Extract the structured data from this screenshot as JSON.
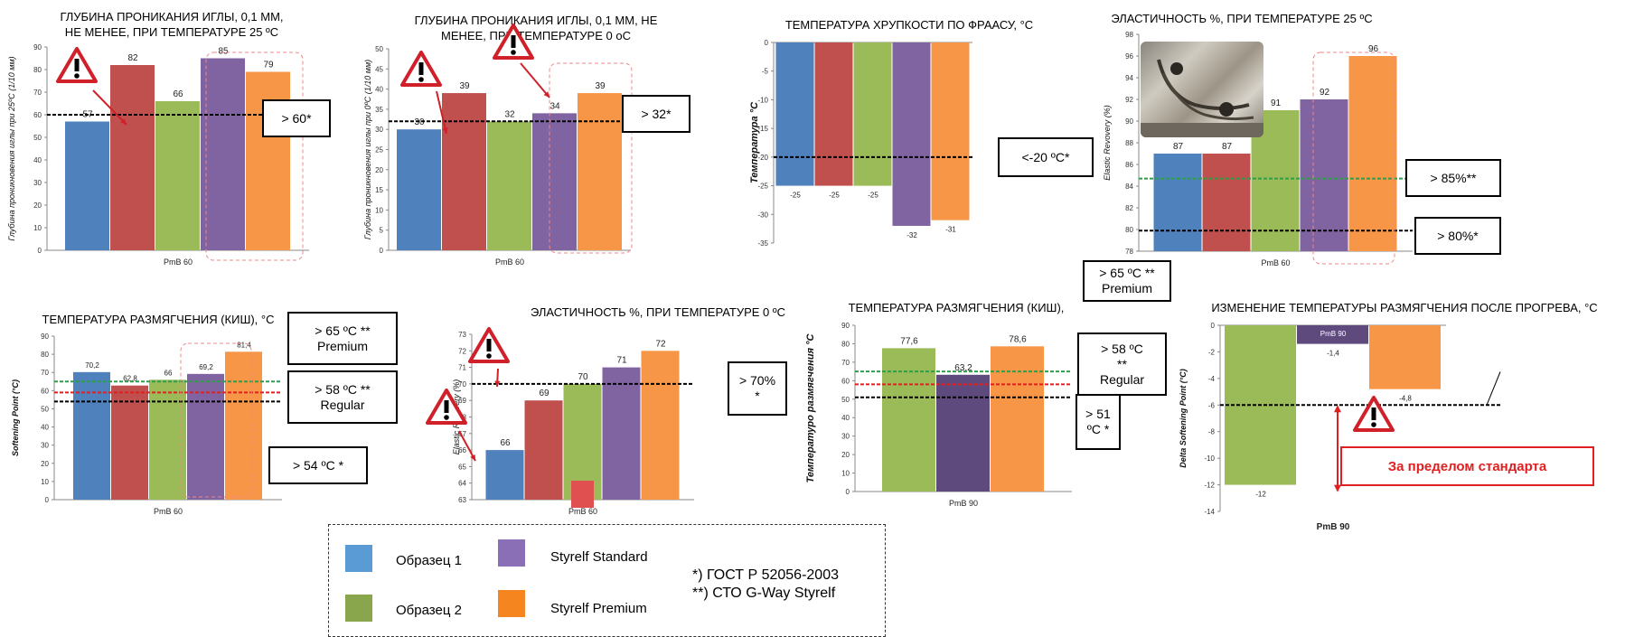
{
  "colors": {
    "s1": "#4f81bd",
    "s2": "#c0504d",
    "s3": "#9bbb59",
    "s4": "#8064a2",
    "s5": "#f79646",
    "s4dark": "#5f4a7e"
  },
  "chart_data": [
    {
      "id": "c1",
      "type": "bar",
      "title": "ГЛУБИНА ПРОНИКАНИЯ ИГЛЫ, 0,1 ММ,\nНЕ МЕНЕЕ, ПРИ ТЕМПЕРАТУРЕ 25 ºС",
      "ylabel": "Глубина проникновения иглы при 25ºС (1/10 мм)",
      "xlabel": "PmB 60",
      "ylim": [
        0,
        90
      ],
      "yticks": [
        0,
        10,
        20,
        30,
        40,
        50,
        60,
        70,
        80,
        90
      ],
      "values": [
        57,
        82,
        66,
        85,
        79
      ],
      "labels": [
        "57",
        "82",
        "66",
        "85",
        "79"
      ],
      "colors": [
        "s1",
        "s2",
        "s3",
        "s4",
        "s5"
      ],
      "thresholds": [
        {
          "value": 60,
          "color": "#000000",
          "label": "> 60*"
        }
      ]
    },
    {
      "id": "c2",
      "type": "bar",
      "title": "ГЛУБИНА ПРОНИКАНИЯ ИГЛЫ, 0,1 ММ, НЕ\nМЕНЕЕ, ПРИ ТЕМПЕРАТУРЕ 0 оС",
      "ylabel": "Глубина проникновения иглы при 0ºС (1/10 мм)",
      "xlabel": "PmB 60",
      "ylim": [
        0,
        50
      ],
      "yticks": [
        0,
        5,
        10,
        15,
        20,
        25,
        30,
        35,
        40,
        45,
        50
      ],
      "values": [
        30,
        39,
        32,
        34,
        39
      ],
      "labels": [
        "30",
        "39",
        "32",
        "34",
        "39"
      ],
      "colors": [
        "s1",
        "s2",
        "s3",
        "s4",
        "s5"
      ],
      "thresholds": [
        {
          "value": 32,
          "color": "#000000",
          "label": "> 32*"
        }
      ]
    },
    {
      "id": "c3",
      "type": "bar",
      "title": "ТЕМПЕРАТУРА ХРУПКОСТИ ПО ФРААСУ, °С",
      "ylabel": "Температура °С",
      "xlabel": "",
      "ylim": [
        -35,
        0
      ],
      "yticks": [
        0,
        -5,
        -10,
        -15,
        -20,
        -25,
        -30,
        -35
      ],
      "values": [
        -25,
        -25,
        -25,
        -32,
        -31
      ],
      "labels": [
        "-25",
        "-25",
        "-25",
        "-32",
        "-31"
      ],
      "colors": [
        "s1",
        "s2",
        "s3",
        "s4",
        "s5"
      ],
      "thresholds": [
        {
          "value": -20,
          "color": "#000000",
          "label": "<-20 ºС*"
        }
      ]
    },
    {
      "id": "c4",
      "type": "bar",
      "title": "ЭЛАСТИЧНОСТЬ %, ПРИ ТЕМПЕРАТУРЕ 25 ºС",
      "ylabel": "Elastic Revovery (%)",
      "xlabel": "PmB 60",
      "ylim": [
        78,
        98
      ],
      "yticks": [
        78,
        80,
        82,
        84,
        86,
        88,
        90,
        92,
        94,
        96,
        98
      ],
      "values": [
        87,
        87,
        91,
        92,
        96
      ],
      "labels": [
        "87",
        "87",
        "91",
        "92",
        "96"
      ],
      "colors": [
        "s1",
        "s2",
        "s3",
        "s4",
        "s5"
      ],
      "thresholds": [
        {
          "value": 84.7,
          "color": "#2e9e4a",
          "label": "> 85%**"
        },
        {
          "value": 79.9,
          "color": "#000000",
          "label": "> 80%*"
        }
      ]
    },
    {
      "id": "c5",
      "type": "bar",
      "title": "ТЕМПЕРАТУРА РАЗМЯГЧЕНИЯ (КИШ), °С",
      "ylabel": "Softening Point (°C)",
      "xlabel": "PmB 60",
      "ylim": [
        0,
        90
      ],
      "yticks": [
        0,
        10,
        20,
        30,
        40,
        50,
        60,
        70,
        80,
        90
      ],
      "values": [
        70.2,
        62.8,
        66,
        69.2,
        81.4
      ],
      "labels": [
        "70,2",
        "62,8",
        "66",
        "69,2",
        "81,4"
      ],
      "colors": [
        "s1",
        "s2",
        "s3",
        "s4",
        "s5"
      ],
      "thresholds": [
        {
          "value": 65,
          "color": "#2e9e4a",
          "label": "> 65 ºС **\nPremium"
        },
        {
          "value": 59,
          "color": "#e02020",
          "label": "> 58 ºС **\nRegular"
        },
        {
          "value": 54,
          "color": "#000000",
          "label": "> 54 ºС *"
        }
      ]
    },
    {
      "id": "c6",
      "type": "bar",
      "title": "ЭЛАСТИЧНОСТЬ %, ПРИ ТЕМПЕРАТУРЕ 0 ºС",
      "ylabel": "Elastic Revovery (%)",
      "xlabel": "PmB 60",
      "ylim": [
        63,
        73
      ],
      "yticks": [
        63,
        64,
        65,
        66,
        67,
        68,
        69,
        70,
        71,
        72,
        73
      ],
      "values": [
        66,
        69,
        70,
        71,
        72
      ],
      "labels": [
        "66",
        "69",
        "70",
        "71",
        "72"
      ],
      "colors": [
        "s1",
        "s2",
        "s3",
        "s4",
        "s5"
      ],
      "thresholds": [
        {
          "value": 70,
          "color": "#000000",
          "label": "> 70%\n*"
        }
      ]
    },
    {
      "id": "c7",
      "type": "bar",
      "title": "ТЕМПЕРАТУРА РАЗМЯГЧЕНИЯ (КИШ),",
      "ylabel": "Температуро размягчения °С",
      "xlabel": "PmB 90",
      "ylim": [
        0,
        90
      ],
      "yticks": [
        0,
        10,
        20,
        30,
        40,
        50,
        60,
        70,
        80,
        90
      ],
      "values": [
        77.6,
        63.2,
        78.6
      ],
      "labels": [
        "77,6",
        "63,2",
        "78,6"
      ],
      "colors": [
        "s3",
        "s4dark",
        "s5"
      ],
      "thresholds": [
        {
          "value": 65,
          "color": "#2e9e4a",
          "label": "> 65 ºС **\nPremium"
        },
        {
          "value": 58,
          "color": "#e02020",
          "label": "> 58 ºС\n**\nRegular"
        },
        {
          "value": 51,
          "color": "#000000",
          "label": "> 51\nºС *"
        }
      ]
    },
    {
      "id": "c8",
      "type": "bar",
      "title": "ИЗМЕНЕНИЕ ТЕМПЕРАТУРЫ РАЗМЯГЧЕНИЯ ПОСЛЕ ПРОГРЕВА, °С",
      "ylabel": "Delta Softening Point (°C)",
      "xlabel": "PmB 90",
      "ylim": [
        -14,
        0
      ],
      "yticks": [
        0,
        -2,
        -4,
        -6,
        -8,
        -10,
        -12,
        -14
      ],
      "values": [
        -12,
        -1.4,
        -4.8
      ],
      "labels": [
        "-12",
        "-1,4",
        "-4,8"
      ],
      "colors": [
        "s3",
        "s4dark",
        "s5"
      ],
      "thresholds": [
        {
          "value": -6,
          "color": "#000000",
          "label": ""
        }
      ],
      "inner_label": "PmB 90"
    }
  ],
  "legend": {
    "items": [
      {
        "label": "Образец 1",
        "color": "#5b9bd5"
      },
      {
        "label": "Образец 2",
        "color": "#8aa64c"
      },
      {
        "label": "Styrelf Standard",
        "color": "#8a6fb7"
      },
      {
        "label": "Styrelf Premium",
        "color": "#f5851f"
      }
    ],
    "standards": "*) ГОСТ Р 52056-2003\n**) СТО G-Way Styrelf"
  },
  "out_of_standard": "За пределом стандарта"
}
